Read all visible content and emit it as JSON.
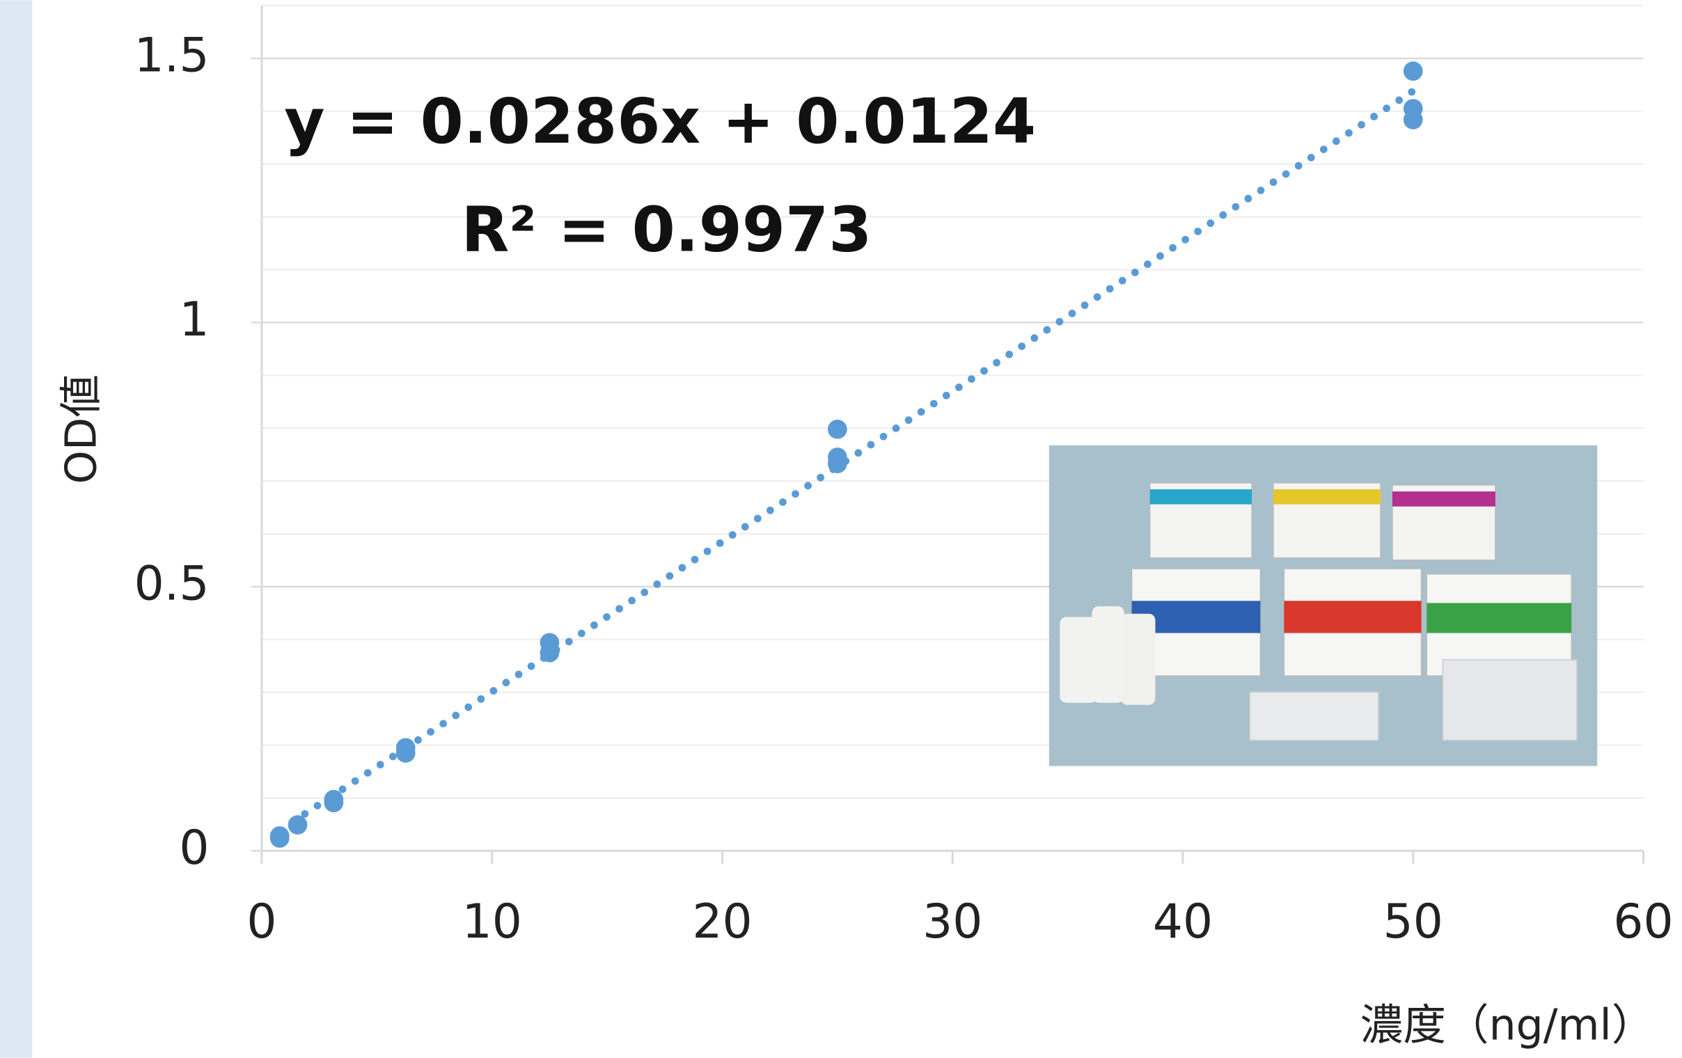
{
  "chart_data": {
    "type": "scatter",
    "x_label": "濃度（ng/ml）",
    "y_label": "OD値",
    "annotations": [
      "y = 0.0286x + 0.0124",
      "R² = 0.9973"
    ],
    "series": [
      {
        "color": "#5b9bd5",
        "x": [
          0.78,
          0.78,
          1.56,
          3.125,
          3.125,
          6.25,
          6.25,
          12.5,
          12.5,
          25,
          25,
          25,
          50,
          50,
          50
        ],
        "values": [
          0.024,
          0.028,
          0.049,
          0.097,
          0.091,
          0.195,
          0.185,
          0.394,
          0.375,
          0.798,
          0.745,
          0.733,
          1.476,
          1.405,
          1.384
        ]
      }
    ],
    "trendline": "linear",
    "xlim": [
      0,
      60
    ],
    "xticks": [
      0,
      10,
      20,
      30,
      40,
      50,
      60
    ],
    "ylim": [
      0,
      1.6
    ],
    "yticks": [
      0,
      0.5,
      1,
      1.5
    ],
    "minor_yticks": [
      0.1,
      0.2,
      0.3,
      0.4,
      0.6,
      0.7,
      0.8,
      0.9,
      1.1,
      1.2,
      1.3,
      1.4,
      1.6
    ],
    "grid": true
  }
}
